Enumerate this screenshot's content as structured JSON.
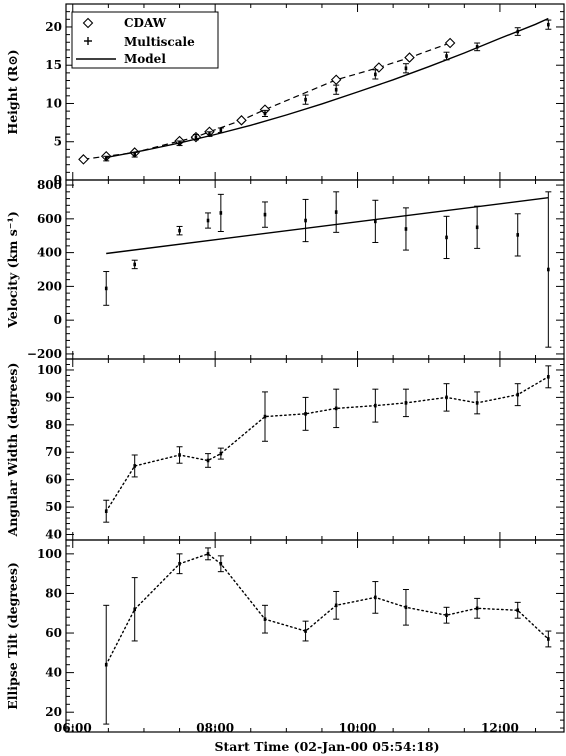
{
  "figure": {
    "xlabel": "Start Time (02-Jan-00 05:54:18)",
    "x_ticks": [
      "06:00",
      "08:00",
      "10:00",
      "12:00"
    ],
    "x_tick_hours": [
      6,
      8,
      10,
      12
    ],
    "xlim_hours": [
      5.905,
      12.9
    ]
  },
  "chart_data": [
    {
      "type": "line",
      "panel": "height",
      "ylabel": "Height (R⊙)",
      "ylim": [
        0,
        23
      ],
      "y_ticks": [
        0,
        5,
        10,
        15,
        20
      ],
      "legend": {
        "position": "top-left",
        "entries": [
          {
            "label": "CDAW",
            "marker": "diamond"
          },
          {
            "label": "Multiscale",
            "marker": "plus"
          },
          {
            "label": "Model",
            "marker": "solid-line"
          }
        ]
      },
      "series": [
        {
          "name": "CDAW",
          "style": "dashed-diamond",
          "x": [
            6.15,
            6.47,
            6.87,
            7.5,
            7.73,
            7.92,
            8.37,
            8.7,
            9.7,
            10.3,
            10.73,
            11.3
          ],
          "y": [
            2.7,
            3.1,
            3.6,
            5.1,
            5.6,
            6.3,
            7.8,
            9.2,
            13.1,
            14.7,
            16.0,
            17.9
          ]
        },
        {
          "name": "Multiscale",
          "style": "error-bars",
          "x": [
            6.47,
            6.87,
            7.5,
            7.73,
            7.92,
            8.08,
            8.7,
            9.27,
            9.7,
            10.25,
            10.68,
            11.25,
            11.68,
            12.25,
            12.68
          ],
          "y": [
            2.8,
            3.3,
            4.8,
            5.6,
            6.0,
            6.5,
            8.7,
            10.5,
            11.8,
            13.8,
            14.6,
            16.2,
            17.4,
            19.4,
            20.3
          ],
          "err": [
            0.3,
            0.3,
            0.3,
            0.35,
            0.3,
            0.3,
            0.4,
            0.6,
            0.6,
            0.6,
            0.6,
            0.5,
            0.5,
            0.5,
            0.6
          ]
        },
        {
          "name": "Model",
          "style": "solid-line",
          "x": [
            6.47,
            7.0,
            7.5,
            8.0,
            8.5,
            9.0,
            9.5,
            10.0,
            10.5,
            11.0,
            11.5,
            12.0,
            12.5,
            12.68
          ],
          "y": [
            2.95,
            3.85,
            4.85,
            5.95,
            7.15,
            8.5,
            9.95,
            11.5,
            13.1,
            14.8,
            16.6,
            18.5,
            20.35,
            21.1
          ]
        }
      ]
    },
    {
      "type": "line",
      "panel": "velocity",
      "ylabel": "Velocity (km s⁻¹)",
      "ylim": [
        -230,
        830
      ],
      "y_ticks": [
        -200,
        0,
        200,
        400,
        600,
        800
      ],
      "series": [
        {
          "name": "Multiscale",
          "style": "error-bars",
          "x": [
            6.47,
            6.87,
            7.5,
            7.9,
            8.08,
            8.7,
            9.27,
            9.7,
            10.25,
            10.68,
            11.25,
            11.68,
            12.25,
            12.68
          ],
          "y": [
            188,
            330,
            530,
            590,
            635,
            625,
            590,
            640,
            585,
            540,
            490,
            550,
            505,
            300
          ],
          "err": [
            100,
            25,
            25,
            45,
            110,
            75,
            125,
            120,
            125,
            125,
            125,
            125,
            125,
            460
          ]
        },
        {
          "name": "Model",
          "style": "solid-line",
          "x": [
            6.47,
            12.68
          ],
          "y": [
            395,
            725
          ]
        }
      ]
    },
    {
      "type": "line",
      "panel": "angular-width",
      "ylabel": "Angular Width (degrees)",
      "ylim": [
        38,
        104
      ],
      "y_ticks": [
        40,
        50,
        60,
        70,
        80,
        90,
        100
      ],
      "series": [
        {
          "name": "Multiscale",
          "style": "dotted-error-bars",
          "x": [
            6.47,
            6.87,
            7.5,
            7.9,
            8.08,
            8.7,
            9.27,
            9.7,
            10.25,
            10.68,
            11.25,
            11.68,
            12.25,
            12.68
          ],
          "y": [
            48.5,
            65,
            69,
            67,
            69.5,
            83,
            84,
            86,
            87,
            88,
            90,
            88,
            91,
            97.5
          ],
          "err": [
            4,
            4,
            3,
            2.5,
            2,
            9,
            6,
            7,
            6,
            5,
            5,
            4,
            4,
            4
          ]
        }
      ]
    },
    {
      "type": "line",
      "panel": "ellipse-tilt",
      "ylabel": "Ellipse Tilt (degrees)",
      "ylim": [
        10,
        107
      ],
      "y_ticks": [
        20,
        40,
        60,
        80,
        100
      ],
      "series": [
        {
          "name": "Multiscale",
          "style": "dotted-error-bars",
          "x": [
            6.47,
            6.87,
            7.5,
            7.9,
            8.08,
            8.7,
            9.27,
            9.7,
            10.25,
            10.68,
            11.25,
            11.68,
            12.25,
            12.68
          ],
          "y": [
            44,
            72,
            95,
            100,
            95,
            67,
            61,
            74,
            78,
            73,
            69,
            72.5,
            71.5,
            57
          ],
          "err": [
            30,
            16,
            5,
            3,
            4,
            7,
            5,
            7,
            8,
            9,
            4,
            5,
            4,
            4
          ]
        }
      ]
    }
  ]
}
